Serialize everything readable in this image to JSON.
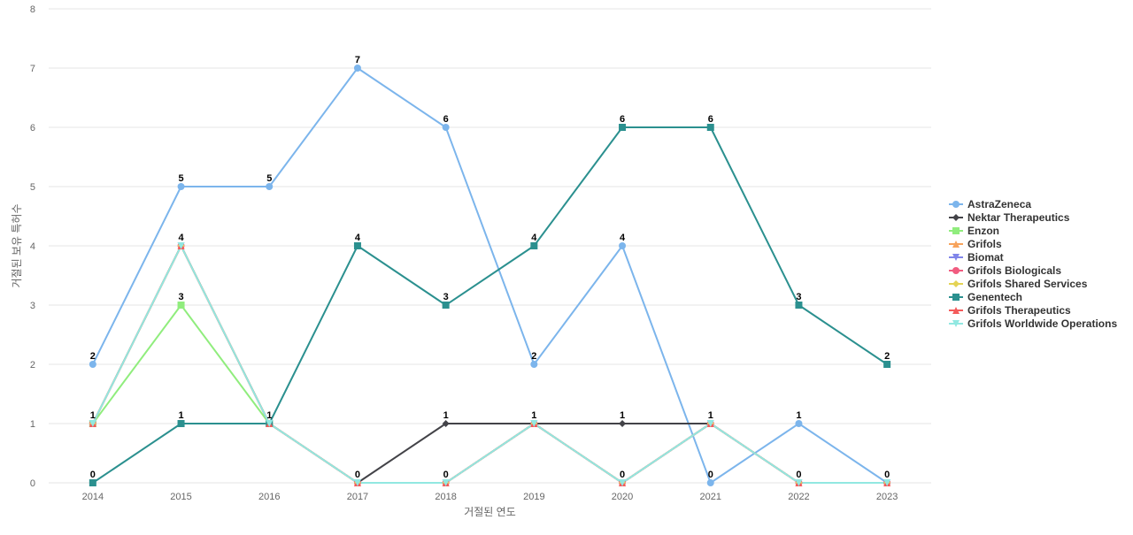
{
  "chart_data": {
    "type": "line",
    "title": "",
    "xlabel": "거절된 연도",
    "ylabel": "거절된 보유 특허수",
    "x": [
      "2014",
      "2015",
      "2016",
      "2017",
      "2018",
      "2019",
      "2020",
      "2021",
      "2022",
      "2023"
    ],
    "ylim": [
      0,
      8
    ],
    "yticks": [
      0,
      1,
      2,
      3,
      4,
      5,
      6,
      7,
      8
    ],
    "grid": true,
    "legend_position": "right",
    "data_labels": [
      {
        "text": "2",
        "x": "2014",
        "y": 2
      },
      {
        "text": "1",
        "x": "2014",
        "y": 1
      },
      {
        "text": "0",
        "x": "2014",
        "y": 0
      },
      {
        "text": "5",
        "x": "2015",
        "y": 5
      },
      {
        "text": "4",
        "x": "2015",
        "y": 4
      },
      {
        "text": "3",
        "x": "2015",
        "y": 3
      },
      {
        "text": "1",
        "x": "2015",
        "y": 1
      },
      {
        "text": "5",
        "x": "2016",
        "y": 5
      },
      {
        "text": "1",
        "x": "2016",
        "y": 1
      },
      {
        "text": "7",
        "x": "2017",
        "y": 7
      },
      {
        "text": "4",
        "x": "2017",
        "y": 4
      },
      {
        "text": "0",
        "x": "2017",
        "y": 0
      },
      {
        "text": "6",
        "x": "2018",
        "y": 6
      },
      {
        "text": "3",
        "x": "2018",
        "y": 3
      },
      {
        "text": "1",
        "x": "2018",
        "y": 1
      },
      {
        "text": "0",
        "x": "2018",
        "y": 0
      },
      {
        "text": "4",
        "x": "2019",
        "y": 4
      },
      {
        "text": "2",
        "x": "2019",
        "y": 2
      },
      {
        "text": "1",
        "x": "2019",
        "y": 1
      },
      {
        "text": "6",
        "x": "2020",
        "y": 6
      },
      {
        "text": "4",
        "x": "2020",
        "y": 4
      },
      {
        "text": "1",
        "x": "2020",
        "y": 1
      },
      {
        "text": "0",
        "x": "2020",
        "y": 0
      },
      {
        "text": "6",
        "x": "2021",
        "y": 6
      },
      {
        "text": "1",
        "x": "2021",
        "y": 1
      },
      {
        "text": "0",
        "x": "2021",
        "y": 0
      },
      {
        "text": "3",
        "x": "2022",
        "y": 3
      },
      {
        "text": "1",
        "x": "2022",
        "y": 1
      },
      {
        "text": "0",
        "x": "2022",
        "y": 0
      },
      {
        "text": "2",
        "x": "2023",
        "y": 2
      },
      {
        "text": "0",
        "x": "2023",
        "y": 0
      }
    ],
    "series": [
      {
        "name": "AstraZeneca",
        "color": "#7cb5ec",
        "marker": "circle",
        "values": [
          2,
          5,
          5,
          7,
          6,
          2,
          4,
          0,
          1,
          0
        ]
      },
      {
        "name": "Nektar Therapeutics",
        "color": "#434348",
        "marker": "diamond",
        "values": [
          null,
          null,
          null,
          0,
          1,
          1,
          1,
          1,
          null,
          null
        ]
      },
      {
        "name": "Enzon",
        "color": "#90ed7d",
        "marker": "square",
        "values": [
          1,
          3,
          1,
          null,
          null,
          null,
          null,
          null,
          null,
          null
        ]
      },
      {
        "name": "Grifols",
        "color": "#f7a35c",
        "marker": "triangle",
        "values": [
          1,
          4,
          1,
          0,
          0,
          1,
          0,
          1,
          0,
          0
        ]
      },
      {
        "name": "Biomat",
        "color": "#8085e9",
        "marker": "triangle-down",
        "values": [
          1,
          4,
          1,
          0,
          0,
          1,
          0,
          1,
          0,
          0
        ]
      },
      {
        "name": "Grifols Biologicals",
        "color": "#f15c80",
        "marker": "circle",
        "values": [
          1,
          4,
          1,
          0,
          0,
          1,
          0,
          1,
          0,
          0
        ]
      },
      {
        "name": "Grifols Shared Services",
        "color": "#e4d354",
        "marker": "diamond",
        "values": [
          1,
          4,
          1,
          0,
          0,
          1,
          0,
          1,
          0,
          0
        ]
      },
      {
        "name": "Genentech",
        "color": "#2b908f",
        "marker": "square",
        "values": [
          0,
          1,
          1,
          4,
          3,
          4,
          6,
          6,
          3,
          2
        ]
      },
      {
        "name": "Grifols Therapeutics",
        "color": "#f45b5b",
        "marker": "triangle",
        "values": [
          1,
          4,
          1,
          0,
          0,
          1,
          0,
          1,
          0,
          0
        ]
      },
      {
        "name": "Grifols Worldwide Operations",
        "color": "#91e8e1",
        "marker": "triangle-down",
        "values": [
          1,
          4,
          1,
          0,
          0,
          1,
          0,
          1,
          0,
          0
        ]
      }
    ]
  }
}
